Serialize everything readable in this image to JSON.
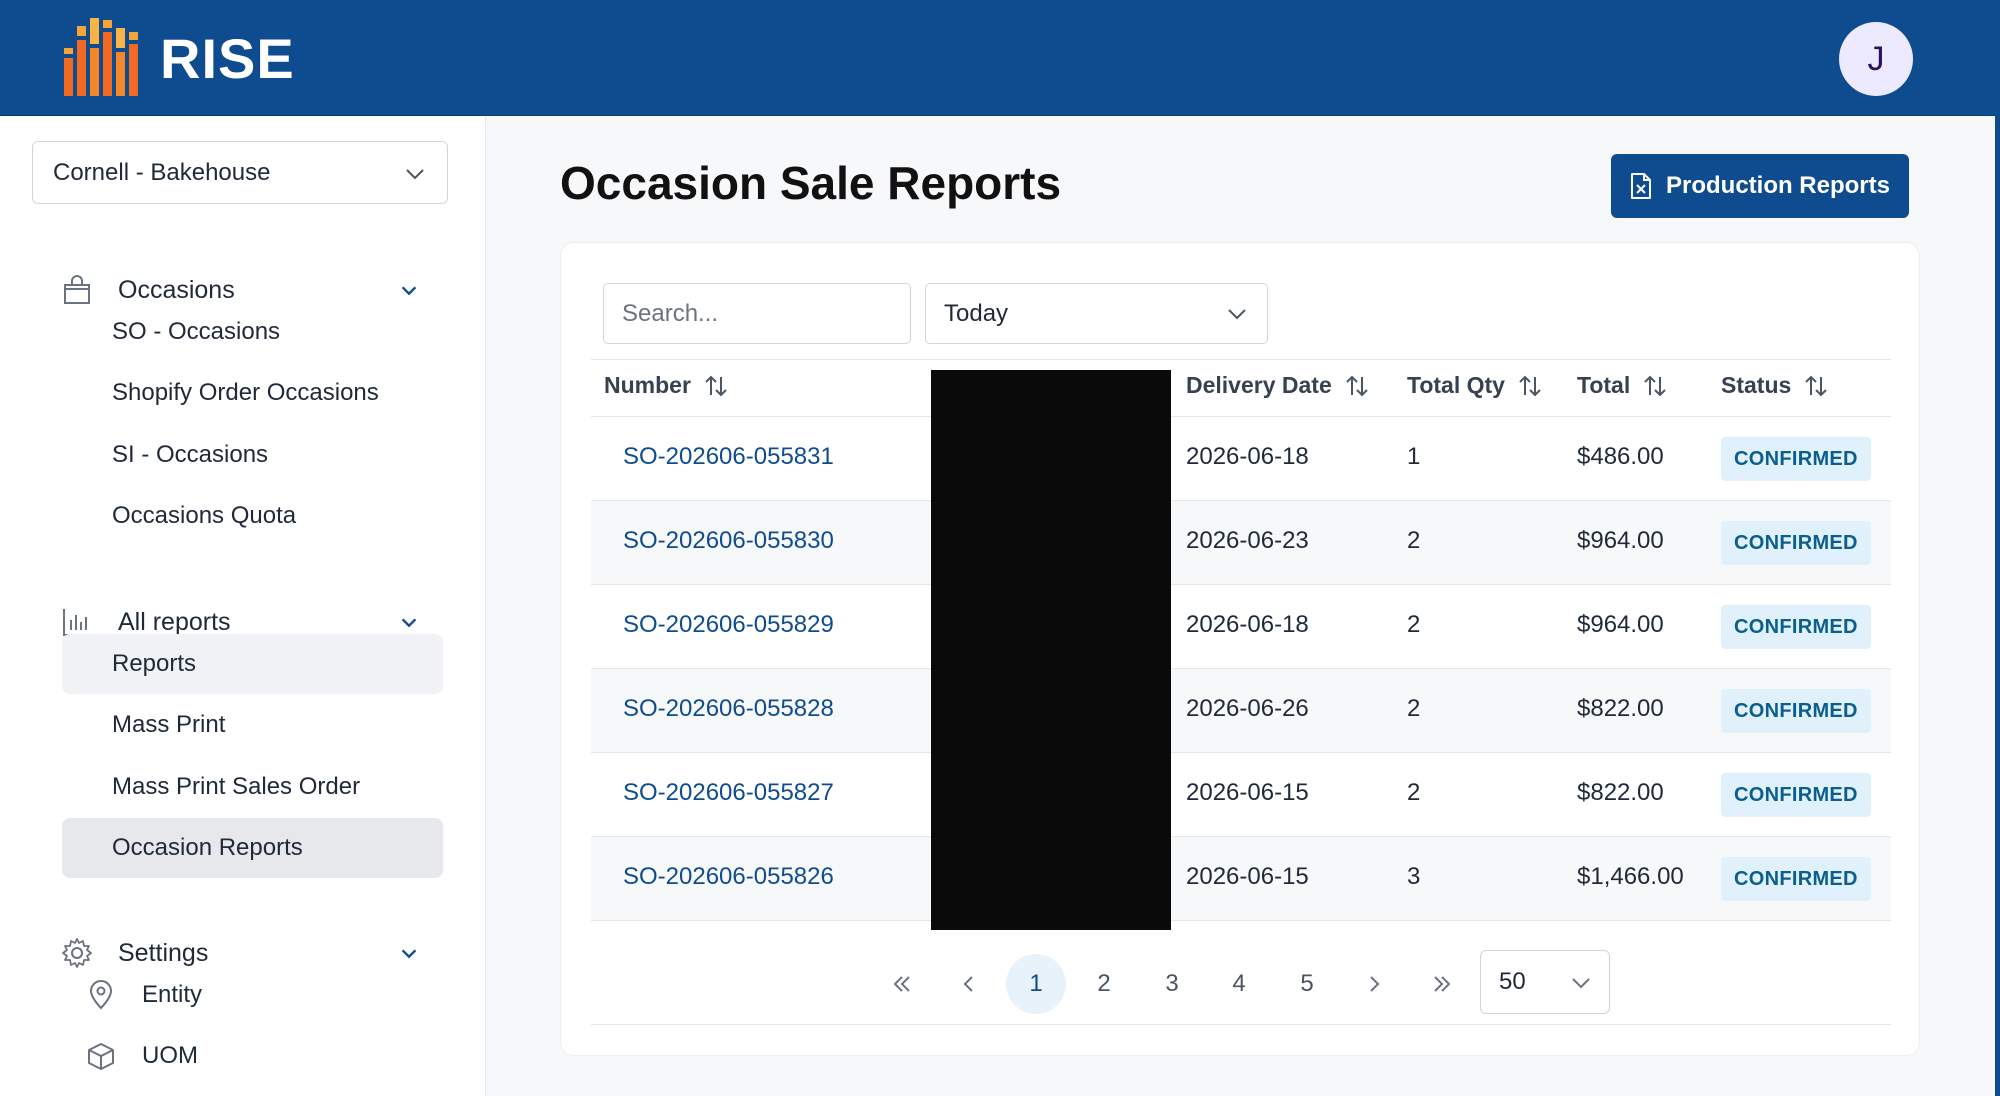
{
  "header": {
    "app_name": "RISE",
    "avatar_initial": "J"
  },
  "sidebar": {
    "entity_selected": "Cornell - Bakehouse",
    "groups": {
      "occasions": "Occasions",
      "all_reports": "All reports",
      "settings": "Settings"
    },
    "occasion_items": [
      "SO - Occasions",
      "Shopify Order Occasions",
      "SI - Occasions",
      "Occasions Quota"
    ],
    "report_items": [
      "Reports",
      "Mass Print",
      "Mass Print Sales Order",
      "Occasion Reports"
    ],
    "settings_items": [
      "Entity",
      "UOM"
    ]
  },
  "main": {
    "title": "Occasion Sale Reports",
    "production_button": "Production Reports",
    "search_placeholder": "Search...",
    "date_filter": "Today",
    "columns": {
      "number": "Number",
      "delivery_date": "Delivery Date",
      "total_qty": "Total Qty",
      "total": "Total",
      "status": "Status"
    },
    "rows": [
      {
        "number": "SO-202606-055831",
        "delivery_date": "2026-06-18",
        "total_qty": "1",
        "total": "$486.00",
        "status": "CONFIRMED"
      },
      {
        "number": "SO-202606-055830",
        "delivery_date": "2026-06-23",
        "total_qty": "2",
        "total": "$964.00",
        "status": "CONFIRMED"
      },
      {
        "number": "SO-202606-055829",
        "delivery_date": "2026-06-18",
        "total_qty": "2",
        "total": "$964.00",
        "status": "CONFIRMED"
      },
      {
        "number": "SO-202606-055828",
        "delivery_date": "2026-06-26",
        "total_qty": "2",
        "total": "$822.00",
        "status": "CONFIRMED"
      },
      {
        "number": "SO-202606-055827",
        "delivery_date": "2026-06-15",
        "total_qty": "2",
        "total": "$822.00",
        "status": "CONFIRMED"
      },
      {
        "number": "SO-202606-055826",
        "delivery_date": "2026-06-15",
        "total_qty": "3",
        "total": "$1,466.00",
        "status": "CONFIRMED"
      }
    ],
    "pagination": {
      "pages": [
        "1",
        "2",
        "3",
        "4",
        "5"
      ],
      "current": "1",
      "per_page": "50"
    }
  },
  "colors": {
    "brand_blue": "#0f4c8f",
    "badge_bg": "#e1f1fb",
    "badge_text": "#0b5f8e",
    "logo_orange": "#f07a22"
  }
}
